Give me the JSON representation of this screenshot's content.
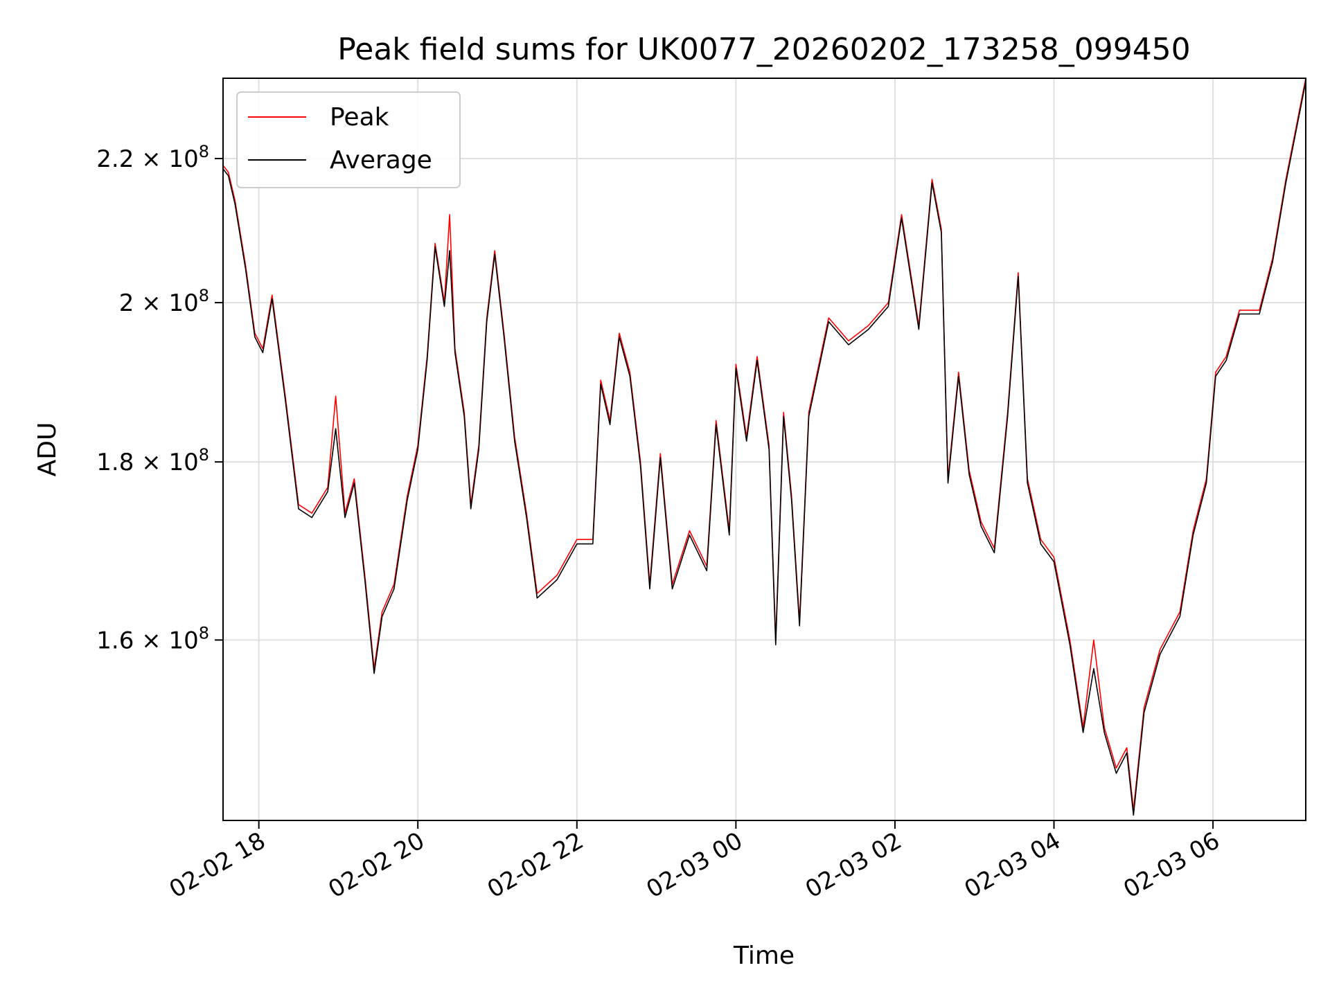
{
  "chart_data": {
    "type": "line",
    "title": "Peak field sums for UK0077_20260202_173258_099450",
    "xlabel": "Time",
    "ylabel": "ADU",
    "yscale": "log",
    "grid": true,
    "legend_position": "top-left",
    "xlim": [
      "2026-02-02 17:33",
      "2026-02-03 07:10"
    ],
    "ylim": [
      142000000,
      232000000
    ],
    "x_ticks": [
      {
        "value": "2026-02-02 18:00",
        "label": "02-02 18"
      },
      {
        "value": "2026-02-02 20:00",
        "label": "02-02 20"
      },
      {
        "value": "2026-02-02 22:00",
        "label": "02-02 22"
      },
      {
        "value": "2026-02-03 00:00",
        "label": "02-03 00"
      },
      {
        "value": "2026-02-03 02:00",
        "label": "02-03 02"
      },
      {
        "value": "2026-02-03 04:00",
        "label": "02-03 04"
      },
      {
        "value": "2026-02-03 06:00",
        "label": "02-03 06"
      }
    ],
    "y_ticks": [
      {
        "value": 160000000,
        "mantissa": "1.6",
        "base": "10",
        "exp": "8"
      },
      {
        "value": 180000000,
        "mantissa": "1.8",
        "base": "10",
        "exp": "8"
      },
      {
        "value": 200000000,
        "mantissa": "2",
        "base": "10",
        "exp": "8"
      },
      {
        "value": 220000000,
        "mantissa": "2.2",
        "base": "10",
        "exp": "8"
      }
    ],
    "series": [
      {
        "name": "Peak",
        "color": "#ff0000",
        "points": [
          [
            "2026-02-02 17:33",
            219000000
          ],
          [
            "2026-02-02 17:37",
            218000000
          ],
          [
            "2026-02-02 17:42",
            214000000
          ],
          [
            "2026-02-02 17:50",
            205000000
          ],
          [
            "2026-02-02 17:57",
            196000000
          ],
          [
            "2026-02-02 18:03",
            194000000
          ],
          [
            "2026-02-02 18:10",
            201000000
          ],
          [
            "2026-02-02 18:20",
            188000000
          ],
          [
            "2026-02-02 18:30",
            175000000
          ],
          [
            "2026-02-02 18:40",
            174000000
          ],
          [
            "2026-02-02 18:52",
            177000000
          ],
          [
            "2026-02-02 18:58",
            188000000
          ],
          [
            "2026-02-02 19:05",
            174000000
          ],
          [
            "2026-02-02 19:12",
            178000000
          ],
          [
            "2026-02-02 19:20",
            167000000
          ],
          [
            "2026-02-02 19:27",
            157000000
          ],
          [
            "2026-02-02 19:33",
            163000000
          ],
          [
            "2026-02-02 19:42",
            166000000
          ],
          [
            "2026-02-02 19:52",
            176000000
          ],
          [
            "2026-02-02 20:00",
            182000000
          ],
          [
            "2026-02-02 20:07",
            193000000
          ],
          [
            "2026-02-02 20:13",
            208000000
          ],
          [
            "2026-02-02 20:20",
            200000000
          ],
          [
            "2026-02-02 20:24",
            212000000
          ],
          [
            "2026-02-02 20:28",
            194000000
          ],
          [
            "2026-02-02 20:35",
            186000000
          ],
          [
            "2026-02-02 20:40",
            175000000
          ],
          [
            "2026-02-02 20:46",
            182000000
          ],
          [
            "2026-02-02 20:52",
            198000000
          ],
          [
            "2026-02-02 20:58",
            207000000
          ],
          [
            "2026-02-02 21:05",
            196000000
          ],
          [
            "2026-02-02 21:13",
            183000000
          ],
          [
            "2026-02-02 21:22",
            174000000
          ],
          [
            "2026-02-02 21:30",
            165000000
          ],
          [
            "2026-02-02 21:45",
            167000000
          ],
          [
            "2026-02-02 22:00",
            171000000
          ],
          [
            "2026-02-02 22:12",
            171000000
          ],
          [
            "2026-02-02 22:18",
            190000000
          ],
          [
            "2026-02-02 22:25",
            185000000
          ],
          [
            "2026-02-02 22:32",
            196000000
          ],
          [
            "2026-02-02 22:40",
            191000000
          ],
          [
            "2026-02-02 22:48",
            180000000
          ],
          [
            "2026-02-02 22:55",
            166000000
          ],
          [
            "2026-02-02 23:03",
            181000000
          ],
          [
            "2026-02-02 23:12",
            166000000
          ],
          [
            "2026-02-02 23:25",
            172000000
          ],
          [
            "2026-02-02 23:38",
            168000000
          ],
          [
            "2026-02-02 23:45",
            185000000
          ],
          [
            "2026-02-02 23:55",
            172000000
          ],
          [
            "2026-02-03 00:00",
            192000000
          ],
          [
            "2026-02-03 00:08",
            183000000
          ],
          [
            "2026-02-03 00:16",
            193000000
          ],
          [
            "2026-02-03 00:25",
            182000000
          ],
          [
            "2026-02-03 00:30",
            160000000
          ],
          [
            "2026-02-03 00:36",
            186000000
          ],
          [
            "2026-02-03 00:42",
            176000000
          ],
          [
            "2026-02-03 00:48",
            162000000
          ],
          [
            "2026-02-03 00:55",
            186000000
          ],
          [
            "2026-02-03 01:10",
            198000000
          ],
          [
            "2026-02-03 01:25",
            195000000
          ],
          [
            "2026-02-03 01:40",
            197000000
          ],
          [
            "2026-02-03 01:55",
            200000000
          ],
          [
            "2026-02-03 02:05",
            212000000
          ],
          [
            "2026-02-03 02:18",
            197000000
          ],
          [
            "2026-02-03 02:28",
            217000000
          ],
          [
            "2026-02-03 02:35",
            210000000
          ],
          [
            "2026-02-03 02:40",
            178000000
          ],
          [
            "2026-02-03 02:48",
            191000000
          ],
          [
            "2026-02-03 02:56",
            179000000
          ],
          [
            "2026-02-03 03:05",
            173000000
          ],
          [
            "2026-02-03 03:15",
            170000000
          ],
          [
            "2026-02-03 03:25",
            186000000
          ],
          [
            "2026-02-03 03:33",
            204000000
          ],
          [
            "2026-02-03 03:40",
            178000000
          ],
          [
            "2026-02-03 03:50",
            171000000
          ],
          [
            "2026-02-03 04:00",
            169000000
          ],
          [
            "2026-02-03 04:12",
            160000000
          ],
          [
            "2026-02-03 04:22",
            151000000
          ],
          [
            "2026-02-03 04:30",
            160000000
          ],
          [
            "2026-02-03 04:38",
            151000000
          ],
          [
            "2026-02-03 04:47",
            147000000
          ],
          [
            "2026-02-03 04:55",
            149000000
          ],
          [
            "2026-02-03 05:00",
            143000000
          ],
          [
            "2026-02-03 05:08",
            153000000
          ],
          [
            "2026-02-03 05:20",
            159000000
          ],
          [
            "2026-02-03 05:35",
            163000000
          ],
          [
            "2026-02-03 05:45",
            172000000
          ],
          [
            "2026-02-03 05:55",
            178000000
          ],
          [
            "2026-02-03 06:02",
            191000000
          ],
          [
            "2026-02-03 06:10",
            193000000
          ],
          [
            "2026-02-03 06:20",
            199000000
          ],
          [
            "2026-02-03 06:35",
            199000000
          ],
          [
            "2026-02-03 06:45",
            206000000
          ],
          [
            "2026-02-03 06:55",
            217000000
          ],
          [
            "2026-02-03 07:10",
            232000000
          ]
        ]
      },
      {
        "name": "Average",
        "color": "#000000",
        "points": [
          [
            "2026-02-02 17:33",
            218500000
          ],
          [
            "2026-02-02 17:37",
            217500000
          ],
          [
            "2026-02-02 17:42",
            213500000
          ],
          [
            "2026-02-02 17:50",
            204500000
          ],
          [
            "2026-02-02 17:57",
            195500000
          ],
          [
            "2026-02-02 18:03",
            193500000
          ],
          [
            "2026-02-02 18:10",
            200500000
          ],
          [
            "2026-02-02 18:20",
            187500000
          ],
          [
            "2026-02-02 18:30",
            174500000
          ],
          [
            "2026-02-02 18:40",
            173500000
          ],
          [
            "2026-02-02 18:52",
            176500000
          ],
          [
            "2026-02-02 18:58",
            184000000
          ],
          [
            "2026-02-02 19:05",
            173500000
          ],
          [
            "2026-02-02 19:12",
            177500000
          ],
          [
            "2026-02-02 19:20",
            166500000
          ],
          [
            "2026-02-02 19:27",
            156500000
          ],
          [
            "2026-02-02 19:33",
            162500000
          ],
          [
            "2026-02-02 19:42",
            165500000
          ],
          [
            "2026-02-02 19:52",
            175500000
          ],
          [
            "2026-02-02 20:00",
            181500000
          ],
          [
            "2026-02-02 20:07",
            192500000
          ],
          [
            "2026-02-02 20:13",
            207500000
          ],
          [
            "2026-02-02 20:20",
            199500000
          ],
          [
            "2026-02-02 20:24",
            207000000
          ],
          [
            "2026-02-02 20:28",
            193500000
          ],
          [
            "2026-02-02 20:35",
            185500000
          ],
          [
            "2026-02-02 20:40",
            174500000
          ],
          [
            "2026-02-02 20:46",
            181500000
          ],
          [
            "2026-02-02 20:52",
            197500000
          ],
          [
            "2026-02-02 20:58",
            206500000
          ],
          [
            "2026-02-02 21:05",
            195500000
          ],
          [
            "2026-02-02 21:13",
            182500000
          ],
          [
            "2026-02-02 21:22",
            173500000
          ],
          [
            "2026-02-02 21:30",
            164500000
          ],
          [
            "2026-02-02 21:45",
            166500000
          ],
          [
            "2026-02-02 22:00",
            170500000
          ],
          [
            "2026-02-02 22:12",
            170500000
          ],
          [
            "2026-02-02 22:18",
            189500000
          ],
          [
            "2026-02-02 22:25",
            184500000
          ],
          [
            "2026-02-02 22:32",
            195500000
          ],
          [
            "2026-02-02 22:40",
            190500000
          ],
          [
            "2026-02-02 22:48",
            179500000
          ],
          [
            "2026-02-02 22:55",
            165500000
          ],
          [
            "2026-02-02 23:03",
            180500000
          ],
          [
            "2026-02-02 23:12",
            165500000
          ],
          [
            "2026-02-02 23:25",
            171500000
          ],
          [
            "2026-02-02 23:38",
            167500000
          ],
          [
            "2026-02-02 23:45",
            184500000
          ],
          [
            "2026-02-02 23:55",
            171500000
          ],
          [
            "2026-02-03 00:00",
            191500000
          ],
          [
            "2026-02-03 00:08",
            182500000
          ],
          [
            "2026-02-03 00:16",
            192500000
          ],
          [
            "2026-02-03 00:25",
            181500000
          ],
          [
            "2026-02-03 00:30",
            159500000
          ],
          [
            "2026-02-03 00:36",
            185500000
          ],
          [
            "2026-02-03 00:42",
            175500000
          ],
          [
            "2026-02-03 00:48",
            161500000
          ],
          [
            "2026-02-03 00:55",
            185500000
          ],
          [
            "2026-02-03 01:10",
            197500000
          ],
          [
            "2026-02-03 01:25",
            194500000
          ],
          [
            "2026-02-03 01:40",
            196500000
          ],
          [
            "2026-02-03 01:55",
            199500000
          ],
          [
            "2026-02-03 02:05",
            211500000
          ],
          [
            "2026-02-03 02:18",
            196500000
          ],
          [
            "2026-02-03 02:28",
            216500000
          ],
          [
            "2026-02-03 02:35",
            209500000
          ],
          [
            "2026-02-03 02:40",
            177500000
          ],
          [
            "2026-02-03 02:48",
            190500000
          ],
          [
            "2026-02-03 02:56",
            178500000
          ],
          [
            "2026-02-03 03:05",
            172500000
          ],
          [
            "2026-02-03 03:15",
            169500000
          ],
          [
            "2026-02-03 03:25",
            185500000
          ],
          [
            "2026-02-03 03:33",
            203500000
          ],
          [
            "2026-02-03 03:40",
            177500000
          ],
          [
            "2026-02-03 03:50",
            170500000
          ],
          [
            "2026-02-03 04:00",
            168500000
          ],
          [
            "2026-02-03 04:12",
            159500000
          ],
          [
            "2026-02-03 04:22",
            150500000
          ],
          [
            "2026-02-03 04:30",
            157000000
          ],
          [
            "2026-02-03 04:38",
            150500000
          ],
          [
            "2026-02-03 04:47",
            146500000
          ],
          [
            "2026-02-03 04:55",
            148500000
          ],
          [
            "2026-02-03 05:00",
            142500000
          ],
          [
            "2026-02-03 05:08",
            152500000
          ],
          [
            "2026-02-03 05:20",
            158500000
          ],
          [
            "2026-02-03 05:35",
            162500000
          ],
          [
            "2026-02-03 05:45",
            171500000
          ],
          [
            "2026-02-03 05:55",
            177500000
          ],
          [
            "2026-02-03 06:02",
            190500000
          ],
          [
            "2026-02-03 06:10",
            192500000
          ],
          [
            "2026-02-03 06:20",
            198500000
          ],
          [
            "2026-02-03 06:35",
            198500000
          ],
          [
            "2026-02-03 06:45",
            205500000
          ],
          [
            "2026-02-03 06:55",
            216500000
          ],
          [
            "2026-02-03 07:10",
            231500000
          ]
        ]
      }
    ],
    "legend": [
      "Peak",
      "Average"
    ]
  }
}
